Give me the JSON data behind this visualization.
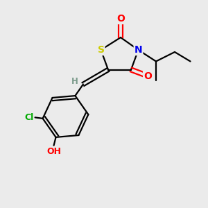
{
  "bg_color": "#ebebeb",
  "bond_color": "#000000",
  "atom_colors": {
    "S": "#cccc00",
    "N": "#0000ee",
    "O": "#ff0000",
    "Cl": "#00aa00",
    "H_gray": "#7a9a8a",
    "C": "#000000"
  },
  "font_size": 9,
  "lw": 1.6
}
